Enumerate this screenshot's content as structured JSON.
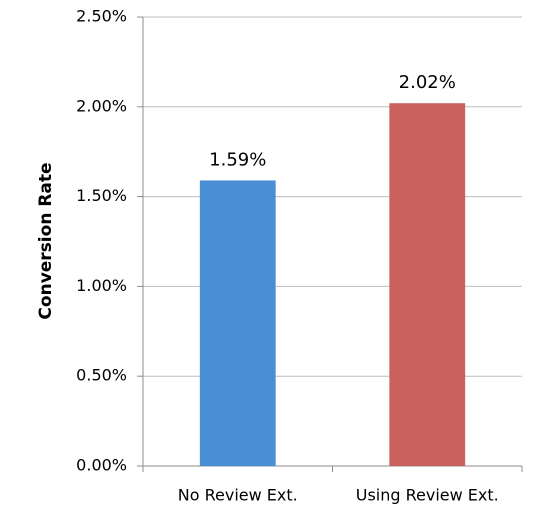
{
  "chart_data": {
    "type": "bar",
    "y_label": "Conversion Rate",
    "categories": [
      "No Review Ext.",
      "Using Review Ext."
    ],
    "values": [
      1.59,
      2.02
    ],
    "value_labels": [
      "1.59%",
      "2.02%"
    ],
    "colors": [
      "#4a8ed6",
      "#c9615d"
    ],
    "ylim": [
      0,
      2.5
    ],
    "yticks": [
      {
        "value": 0,
        "label": "0.00%"
      },
      {
        "value": 0.5,
        "label": "0.50%"
      },
      {
        "value": 1,
        "label": "1.00%"
      },
      {
        "value": 1.5,
        "label": "1.50%"
      },
      {
        "value": 2,
        "label": "2.00%"
      },
      {
        "value": 2.5,
        "label": "2.50%"
      }
    ],
    "grid": true
  }
}
